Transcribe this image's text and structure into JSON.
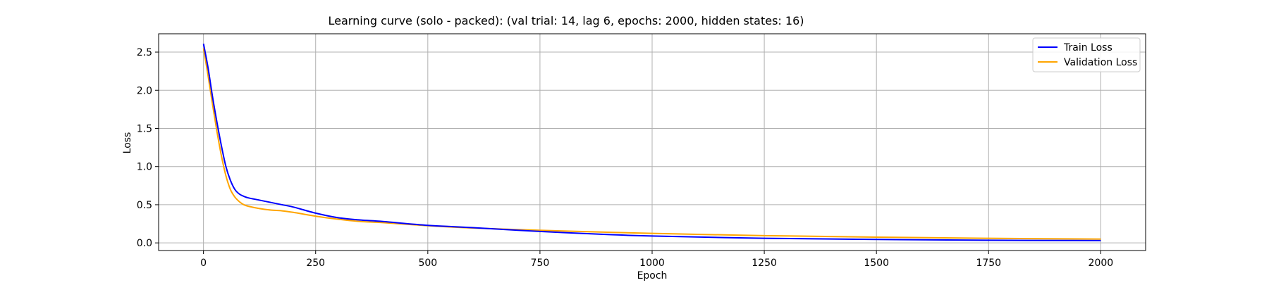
{
  "chart_data": {
    "type": "line",
    "title": "Learning curve (solo - packed): (val trial: 14, lag 6, epochs: 2000, hidden states: 16)",
    "xlabel": "Epoch",
    "ylabel": "Loss",
    "xlim": [
      -100,
      2100
    ],
    "ylim": [
      -0.1,
      2.74
    ],
    "xticks": [
      0,
      250,
      500,
      750,
      1000,
      1250,
      1500,
      1750,
      2000
    ],
    "xtick_labels": [
      "0",
      "250",
      "500",
      "750",
      "1000",
      "1250",
      "1500",
      "1750",
      "2000"
    ],
    "yticks": [
      0.0,
      0.5,
      1.0,
      1.5,
      2.0,
      2.5
    ],
    "ytick_labels": [
      "0.0",
      "0.5",
      "1.0",
      "1.5",
      "2.0",
      "2.5"
    ],
    "grid": true,
    "legend_position": "top-right",
    "series": [
      {
        "name": "Train Loss",
        "color": "#0000ff",
        "x": [
          0,
          10,
          20,
          30,
          40,
          50,
          60,
          70,
          80,
          90,
          100,
          125,
          150,
          175,
          200,
          250,
          300,
          350,
          400,
          500,
          600,
          750,
          900,
          1000,
          1250,
          1500,
          1750,
          2000
        ],
        "y": [
          2.61,
          2.3,
          1.92,
          1.58,
          1.27,
          1.0,
          0.82,
          0.7,
          0.64,
          0.61,
          0.59,
          0.56,
          0.53,
          0.5,
          0.47,
          0.39,
          0.33,
          0.3,
          0.28,
          0.23,
          0.2,
          0.15,
          0.11,
          0.09,
          0.06,
          0.045,
          0.035,
          0.03
        ]
      },
      {
        "name": "Validation Loss",
        "color": "#ffa500",
        "x": [
          0,
          10,
          20,
          30,
          40,
          50,
          60,
          70,
          80,
          90,
          100,
          125,
          150,
          175,
          200,
          250,
          300,
          350,
          400,
          500,
          600,
          750,
          900,
          1000,
          1250,
          1500,
          1750,
          2000
        ],
        "y": [
          2.55,
          2.2,
          1.82,
          1.46,
          1.14,
          0.88,
          0.7,
          0.6,
          0.54,
          0.5,
          0.48,
          0.45,
          0.43,
          0.42,
          0.4,
          0.35,
          0.31,
          0.28,
          0.265,
          0.225,
          0.195,
          0.165,
          0.14,
          0.125,
          0.095,
          0.075,
          0.06,
          0.05
        ]
      }
    ]
  }
}
